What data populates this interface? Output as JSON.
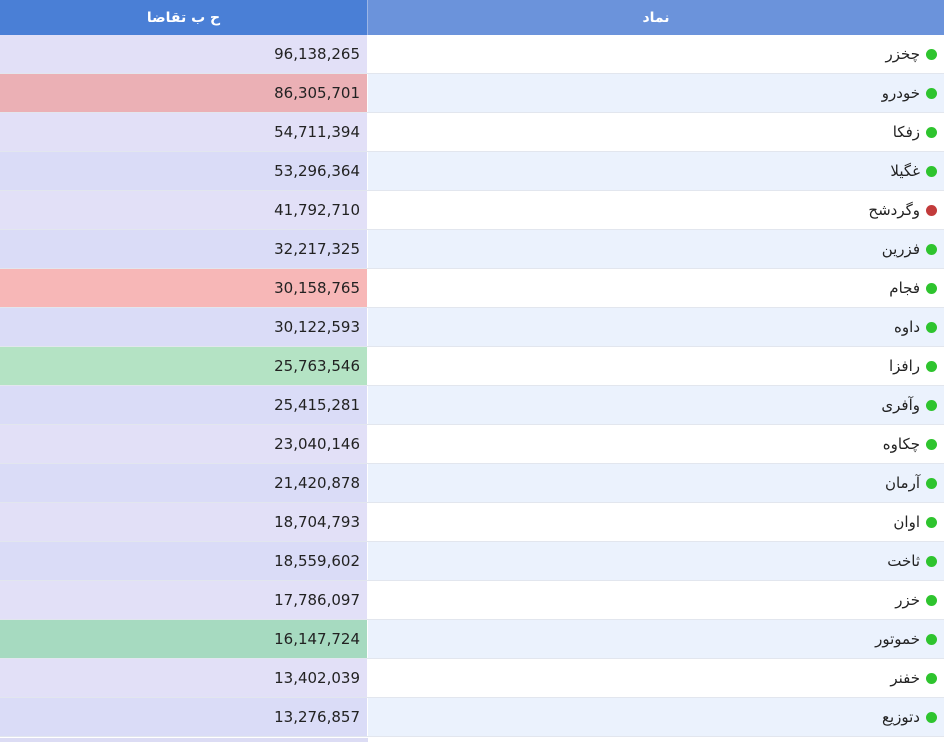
{
  "colors": {
    "header_symbol_bg": "#6b93db",
    "header_value_bg": "#4a7fd6",
    "status_green": "#2ec42e",
    "status_red": "#c23b3b",
    "row_bg_a": "#ffffff",
    "row_bg_b": "#ebf2fd"
  },
  "header": {
    "symbol_label": "نماد",
    "value_label": "ح ب تقاضا"
  },
  "rows": [
    {
      "symbol": "چخزر",
      "status": "green",
      "value": "96,138,265",
      "value_bg": "#e2e0f7"
    },
    {
      "symbol": "خودرو",
      "status": "green",
      "value": "86,305,701",
      "value_bg": "#ebb0b5"
    },
    {
      "symbol": "زفکا",
      "status": "green",
      "value": "54,711,394",
      "value_bg": "#e2e0f7"
    },
    {
      "symbol": "غگیلا",
      "status": "green",
      "value": "53,296,364",
      "value_bg": "#dadcf7"
    },
    {
      "symbol": "وگردشح",
      "status": "red",
      "value": "41,792,710",
      "value_bg": "#e2e0f7"
    },
    {
      "symbol": "فزرین",
      "status": "green",
      "value": "32,217,325",
      "value_bg": "#dadcf7"
    },
    {
      "symbol": "فجام",
      "status": "green",
      "value": "30,158,765",
      "value_bg": "#f7b7b7"
    },
    {
      "symbol": "داوه",
      "status": "green",
      "value": "30,122,593",
      "value_bg": "#dadcf7"
    },
    {
      "symbol": "رافزا",
      "status": "green",
      "value": "25,763,546",
      "value_bg": "#b4e3c4"
    },
    {
      "symbol": "وآفری",
      "status": "green",
      "value": "25,415,281",
      "value_bg": "#dadcf7"
    },
    {
      "symbol": "چکاوه",
      "status": "green",
      "value": "23,040,146",
      "value_bg": "#e2e0f7"
    },
    {
      "symbol": "آرمان",
      "status": "green",
      "value": "21,420,878",
      "value_bg": "#dadcf7"
    },
    {
      "symbol": "اوان",
      "status": "green",
      "value": "18,704,793",
      "value_bg": "#e2e0f7"
    },
    {
      "symbol": "ثاخت",
      "status": "green",
      "value": "18,559,602",
      "value_bg": "#dadcf7"
    },
    {
      "symbol": "خزر",
      "status": "green",
      "value": "17,786,097",
      "value_bg": "#e2e0f7"
    },
    {
      "symbol": "خموتور",
      "status": "green",
      "value": "16,147,724",
      "value_bg": "#a6dac0"
    },
    {
      "symbol": "خفنر",
      "status": "green",
      "value": "13,402,039",
      "value_bg": "#e2e0f7"
    },
    {
      "symbol": "دتوزیع",
      "status": "green",
      "value": "13,276,857",
      "value_bg": "#dadcf7"
    }
  ]
}
